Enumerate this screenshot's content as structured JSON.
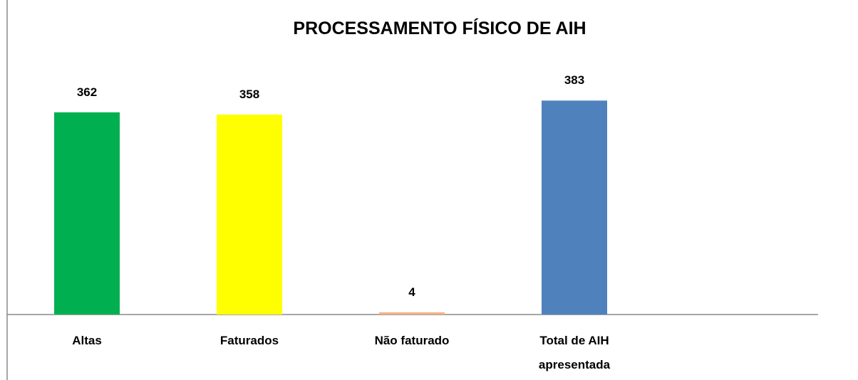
{
  "chart_data": {
    "type": "bar",
    "title": "PROCESSAMENTO FÍSICO DE AIH",
    "categories": [
      "Altas",
      "Faturados",
      "Não faturado",
      "Total de AIH apresentada"
    ],
    "values": [
      362,
      358,
      4,
      383
    ],
    "colors": [
      "#00b050",
      "#ffff00",
      "#f4b183",
      "#4f81bd"
    ],
    "ylim": [
      0,
      400
    ]
  }
}
